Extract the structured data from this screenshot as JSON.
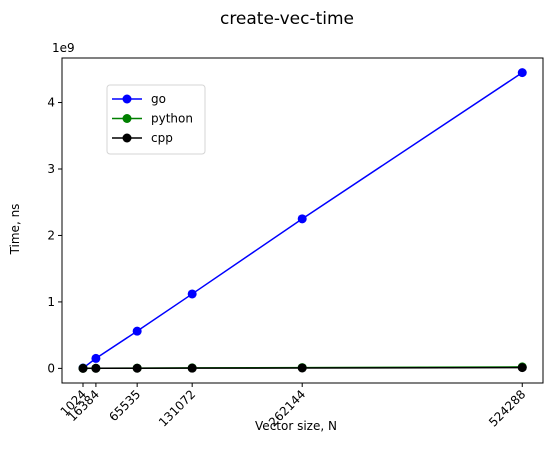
{
  "chart_data": {
    "type": "line",
    "title": "create-vec-time",
    "xlabel": "Vector size, N",
    "ylabel": "Time, ns",
    "y_offset_text": "1e9",
    "x": [
      1024,
      16384,
      65535,
      131072,
      262144,
      524288
    ],
    "x_tick_labels": [
      "1024",
      "16384",
      "65535",
      "131072",
      "262144",
      "524288"
    ],
    "xlim": [
      -24000,
      549000
    ],
    "ylim": [
      -220000000,
      4670000000
    ],
    "y_ticks": [
      0,
      1000000000,
      2000000000,
      3000000000,
      4000000000
    ],
    "y_tick_labels": [
      "0",
      "1",
      "2",
      "3",
      "4"
    ],
    "grid": false,
    "legend_position": "upper-left",
    "series": [
      {
        "name": "go",
        "color": "#0000ff",
        "values": [
          5000000,
          150000000,
          560000000,
          1120000000,
          2250000000,
          4450000000
        ]
      },
      {
        "name": "python",
        "color": "#008000",
        "values": [
          1000000,
          2000000,
          4000000,
          7000000,
          12000000,
          22000000
        ]
      },
      {
        "name": "cpp",
        "color": "#000000",
        "values": [
          0,
          1000000,
          2000000,
          3000000,
          6000000,
          12000000
        ]
      }
    ]
  }
}
